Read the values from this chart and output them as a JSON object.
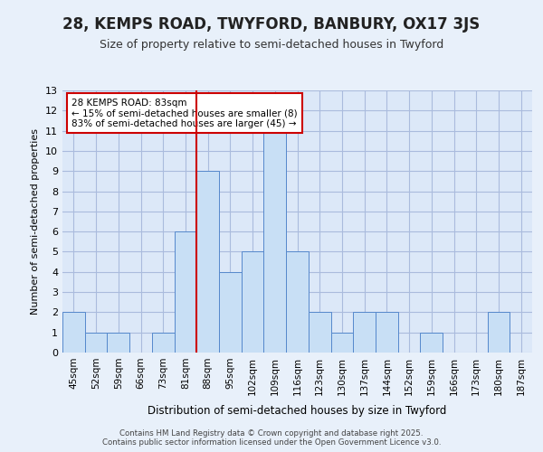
{
  "title": "28, KEMPS ROAD, TWYFORD, BANBURY, OX17 3JS",
  "subtitle": "Size of property relative to semi-detached houses in Twyford",
  "xlabel": "Distribution of semi-detached houses by size in Twyford",
  "ylabel": "Number of semi-detached properties",
  "bins": [
    "45sqm",
    "52sqm",
    "59sqm",
    "66sqm",
    "73sqm",
    "81sqm",
    "88sqm",
    "95sqm",
    "102sqm",
    "109sqm",
    "116sqm",
    "123sqm",
    "130sqm",
    "137sqm",
    "144sqm",
    "152sqm",
    "159sqm",
    "166sqm",
    "173sqm",
    "180sqm",
    "187sqm"
  ],
  "counts": [
    2,
    1,
    1,
    0,
    1,
    6,
    9,
    4,
    5,
    11,
    5,
    2,
    1,
    2,
    2,
    0,
    1,
    0,
    0,
    2,
    0
  ],
  "bar_color": "#c8dff5",
  "bar_edge_color": "#5588cc",
  "subject_line_color": "#cc0000",
  "annotation_text_line1": "28 KEMPS ROAD: 83sqm",
  "annotation_text_line2": "← 15% of semi-detached houses are smaller (8)",
  "annotation_text_line3": "83% of semi-detached houses are larger (45) →",
  "annotation_box_color": "#ffffff",
  "annotation_box_edge": "#cc0000",
  "ylim": [
    0,
    13
  ],
  "yticks": [
    0,
    1,
    2,
    3,
    4,
    5,
    6,
    7,
    8,
    9,
    10,
    11,
    12,
    13
  ],
  "footer1": "Contains HM Land Registry data © Crown copyright and database right 2025.",
  "footer2": "Contains public sector information licensed under the Open Government Licence v3.0.",
  "background_color": "#e8f0fa",
  "plot_background": "#dce8f8",
  "grid_color": "#aabbdd",
  "title_fontsize": 12,
  "subtitle_fontsize": 9
}
